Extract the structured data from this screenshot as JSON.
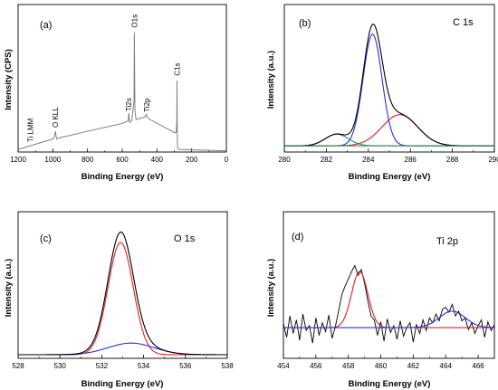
{
  "figure": {
    "panels": [
      {
        "label": "(a)",
        "title": "",
        "xlabel": "Binding Energy (eV)",
        "ylabel": "Intensity (CPS)"
      },
      {
        "label": "(b)",
        "title": "C 1s",
        "xlabel": "Binding Energy (eV)",
        "ylabel": "Intensity (a.u.)"
      },
      {
        "label": "(c)",
        "title": "O 1s",
        "xlabel": "Binding Energy (eV)",
        "ylabel": "Intensity (a.u.)"
      },
      {
        "label": "(d)",
        "title": "Ti 2p",
        "xlabel": "Binding Energy (eV)",
        "ylabel": "Intensity (a.u.)"
      }
    ]
  },
  "colors": {
    "black": "#000000",
    "gray": "#808080",
    "blue": "#2c2cdc",
    "red": "#e02020",
    "teal": "#1a8c8c",
    "green": "#1a8c3c"
  },
  "chart_data": [
    {
      "type": "line",
      "label": "(a)",
      "xlabel": "Binding Energy (eV)",
      "ylabel": "Intensity (CPS)",
      "xlim": [
        1200,
        0
      ],
      "xticks": [
        "1200",
        "1000",
        "800",
        "600",
        "400",
        "200",
        "0"
      ],
      "annotations": [
        {
          "text": "Ti LMM",
          "x": 1130
        },
        {
          "text": "O KLL",
          "x": 985
        },
        {
          "text": "O1s",
          "x": 530
        },
        {
          "text": "Ti2s",
          "x": 563
        },
        {
          "text": "Ti2p",
          "x": 459
        },
        {
          "text": "C1s",
          "x": 284.6
        }
      ],
      "series": [
        {
          "color": "gray",
          "x": [
            1200,
            1100,
            1000,
            990,
            985,
            978,
            960,
            800,
            600,
            566,
            562,
            558,
            545,
            532,
            531,
            530,
            529,
            527,
            520,
            470,
            460,
            458,
            440,
            300,
            290,
            286,
            285,
            284.6,
            284,
            283,
            281,
            270,
            150,
            0
          ],
          "y": [
            0.02,
            0.06,
            0.1,
            0.12,
            0.16,
            0.1,
            0.11,
            0.16,
            0.22,
            0.24,
            0.3,
            0.23,
            0.24,
            0.4,
            0.7,
            0.92,
            0.7,
            0.32,
            0.25,
            0.27,
            0.29,
            0.27,
            0.25,
            0.15,
            0.15,
            0.22,
            0.4,
            0.55,
            0.4,
            0.14,
            0.03,
            0.02,
            0.015,
            0.01
          ]
        }
      ]
    },
    {
      "type": "line",
      "label": "(b)",
      "title": "C 1s",
      "xlabel": "Binding Energy (eV)",
      "ylabel": "Intensity (a.u.)",
      "xlim": [
        280,
        290
      ],
      "xticks": [
        "280",
        "282",
        "284",
        "286",
        "288",
        "290"
      ],
      "baseline": 0.02,
      "components": [
        {
          "color": "teal",
          "center": 282.5,
          "amp": 0.09,
          "sigma": 0.55
        },
        {
          "color": "blue",
          "center": 284.2,
          "amp": 0.86,
          "sigma": 0.45
        },
        {
          "color": "red",
          "center": 285.5,
          "amp": 0.24,
          "sigma": 0.85
        }
      ],
      "envelope": {
        "color": "black"
      }
    },
    {
      "type": "line",
      "label": "(c)",
      "title": "O 1s",
      "xlabel": "Binding Energy (eV)",
      "ylabel": "Intensity (a.u.)",
      "xlim": [
        528,
        538
      ],
      "xticks": [
        "528",
        "530",
        "532",
        "534",
        "536",
        "538"
      ],
      "baseline": 0.0,
      "components": [
        {
          "color": "red",
          "center": 532.9,
          "amp": 0.87,
          "sigma": 0.6
        },
        {
          "color": "blue",
          "center": 533.4,
          "amp": 0.09,
          "sigma": 1.1
        }
      ],
      "envelope": {
        "color": "black"
      }
    },
    {
      "type": "line",
      "label": "(d)",
      "title": "Ti 2p",
      "xlabel": "Binding Energy (eV)",
      "ylabel": "Intensity (a.u.)",
      "xlim": [
        454,
        467
      ],
      "xticks": [
        "454",
        "456",
        "458",
        "460",
        "462",
        "464",
        "466"
      ],
      "baseline": 0.28,
      "components": [
        {
          "color": "red",
          "center": 458.7,
          "amp": 0.58,
          "sigma": 0.5
        },
        {
          "color": "blue",
          "center": 464.4,
          "amp": 0.17,
          "sigma": 0.8
        }
      ],
      "raw": {
        "color": "black",
        "x": [
          454.0,
          454.2,
          454.4,
          454.6,
          454.8,
          455.0,
          455.2,
          455.4,
          455.6,
          455.8,
          456.0,
          456.2,
          456.4,
          456.6,
          456.8,
          457.0,
          457.2,
          457.4,
          457.6,
          457.8,
          458.0,
          458.2,
          458.4,
          458.6,
          458.8,
          459.0,
          459.2,
          459.4,
          459.6,
          459.8,
          460.0,
          460.2,
          460.4,
          460.6,
          460.8,
          461.0,
          461.2,
          461.4,
          461.6,
          461.8,
          462.0,
          462.2,
          462.4,
          462.6,
          462.8,
          463.0,
          463.2,
          463.4,
          463.6,
          463.8,
          464.0,
          464.2,
          464.4,
          464.6,
          464.8,
          465.0,
          465.2,
          465.4,
          465.6,
          465.8,
          466.0,
          466.2,
          466.4,
          466.6,
          466.8,
          467.0
        ],
        "y": [
          0.32,
          0.18,
          0.4,
          0.22,
          0.36,
          0.15,
          0.42,
          0.25,
          0.3,
          0.12,
          0.38,
          0.2,
          0.33,
          0.24,
          0.41,
          0.17,
          0.29,
          0.45,
          0.62,
          0.71,
          0.78,
          0.86,
          0.92,
          0.82,
          0.88,
          0.74,
          0.56,
          0.4,
          0.36,
          0.2,
          0.34,
          0.14,
          0.37,
          0.23,
          0.3,
          0.16,
          0.35,
          0.19,
          0.28,
          0.33,
          0.13,
          0.31,
          0.22,
          0.36,
          0.25,
          0.38,
          0.33,
          0.42,
          0.35,
          0.47,
          0.49,
          0.44,
          0.52,
          0.4,
          0.45,
          0.35,
          0.38,
          0.26,
          0.33,
          0.22,
          0.3,
          0.36,
          0.18,
          0.34,
          0.25,
          0.31
        ]
      }
    }
  ]
}
